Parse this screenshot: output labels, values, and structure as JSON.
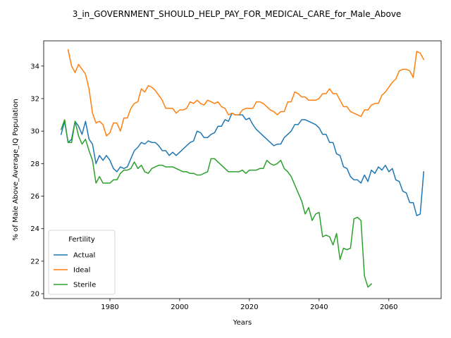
{
  "chart_data": {
    "type": "line",
    "title": "3_in_GOVERNMENT_SHOULD_HELP_PAY_FOR_MEDICAL_CARE_for_Male_Above",
    "xlabel": "Years",
    "ylabel": "% of Male Above_Average_IQ Population",
    "xlim": [
      1961,
      2075
    ],
    "ylim": [
      19.7,
      35.55
    ],
    "x_ticks": [
      1980,
      2000,
      2020,
      2040,
      2060
    ],
    "y_ticks": [
      20,
      22,
      24,
      26,
      28,
      30,
      32,
      34
    ],
    "grid": false,
    "legend": {
      "title": "Fertility",
      "placement": "lower-left"
    },
    "series": [
      {
        "name": "Actual",
        "color": "#1f77b4",
        "points": [
          [
            1966,
            29.8
          ],
          [
            1967,
            30.6
          ],
          [
            1968,
            29.3
          ],
          [
            1969,
            29.5
          ],
          [
            1970,
            30.6
          ],
          [
            1971,
            30.3
          ],
          [
            1972,
            29.8
          ],
          [
            1973,
            30.6
          ],
          [
            1974,
            29.5
          ],
          [
            1975,
            29.2
          ],
          [
            1976,
            28.0
          ],
          [
            1977,
            28.5
          ],
          [
            1978,
            28.2
          ],
          [
            1979,
            28.5
          ],
          [
            1980,
            28.2
          ],
          [
            1981,
            27.7
          ],
          [
            1982,
            27.5
          ],
          [
            1983,
            27.8
          ],
          [
            1984,
            27.7
          ],
          [
            1985,
            27.8
          ],
          [
            1986,
            28.3
          ],
          [
            1987,
            28.8
          ],
          [
            1988,
            29.0
          ],
          [
            1989,
            29.3
          ],
          [
            1990,
            29.2
          ],
          [
            1991,
            29.4
          ],
          [
            1992,
            29.3
          ],
          [
            1993,
            29.3
          ],
          [
            1994,
            29.1
          ],
          [
            1995,
            28.8
          ],
          [
            1996,
            28.8
          ],
          [
            1997,
            28.5
          ],
          [
            1998,
            28.7
          ],
          [
            1999,
            28.5
          ],
          [
            2000,
            28.7
          ],
          [
            2001,
            28.9
          ],
          [
            2002,
            29.1
          ],
          [
            2003,
            29.3
          ],
          [
            2004,
            29.4
          ],
          [
            2005,
            30.0
          ],
          [
            2006,
            29.9
          ],
          [
            2007,
            29.6
          ],
          [
            2008,
            29.6
          ],
          [
            2009,
            29.8
          ],
          [
            2010,
            29.9
          ],
          [
            2011,
            30.3
          ],
          [
            2012,
            30.3
          ],
          [
            2013,
            30.7
          ],
          [
            2014,
            30.6
          ],
          [
            2015,
            31.1
          ],
          [
            2016,
            31.0
          ],
          [
            2017,
            31.0
          ],
          [
            2018,
            31.0
          ],
          [
            2019,
            30.7
          ],
          [
            2020,
            30.8
          ],
          [
            2021,
            30.4
          ],
          [
            2022,
            30.1
          ],
          [
            2023,
            29.9
          ],
          [
            2024,
            29.7
          ],
          [
            2025,
            29.5
          ],
          [
            2026,
            29.3
          ],
          [
            2027,
            29.1
          ],
          [
            2028,
            29.2
          ],
          [
            2029,
            29.2
          ],
          [
            2030,
            29.6
          ],
          [
            2031,
            29.8
          ],
          [
            2032,
            30.0
          ],
          [
            2033,
            30.4
          ],
          [
            2034,
            30.4
          ],
          [
            2035,
            30.7
          ],
          [
            2036,
            30.7
          ],
          [
            2037,
            30.6
          ],
          [
            2038,
            30.5
          ],
          [
            2039,
            30.4
          ],
          [
            2040,
            30.2
          ],
          [
            2041,
            29.8
          ],
          [
            2042,
            29.8
          ],
          [
            2043,
            29.3
          ],
          [
            2044,
            29.3
          ],
          [
            2045,
            28.6
          ],
          [
            2046,
            28.5
          ],
          [
            2047,
            27.8
          ],
          [
            2048,
            27.7
          ],
          [
            2049,
            27.2
          ],
          [
            2050,
            27.0
          ],
          [
            2051,
            27.0
          ],
          [
            2052,
            26.8
          ],
          [
            2053,
            27.3
          ],
          [
            2054,
            26.9
          ],
          [
            2055,
            27.6
          ],
          [
            2056,
            27.4
          ],
          [
            2057,
            27.8
          ],
          [
            2058,
            27.6
          ],
          [
            2059,
            27.9
          ],
          [
            2060,
            27.5
          ],
          [
            2061,
            27.7
          ],
          [
            2062,
            27.0
          ],
          [
            2063,
            26.9
          ],
          [
            2064,
            26.3
          ],
          [
            2065,
            26.2
          ],
          [
            2066,
            25.6
          ],
          [
            2067,
            25.6
          ],
          [
            2068,
            24.8
          ],
          [
            2069,
            24.9
          ],
          [
            2070,
            27.5
          ]
        ]
      },
      {
        "name": "Ideal",
        "color": "#ff7f0e",
        "points": [
          [
            1968,
            35.0
          ],
          [
            1969,
            34.0
          ],
          [
            1970,
            33.6
          ],
          [
            1971,
            34.1
          ],
          [
            1972,
            33.8
          ],
          [
            1973,
            33.5
          ],
          [
            1974,
            32.6
          ],
          [
            1975,
            31.1
          ],
          [
            1976,
            30.5
          ],
          [
            1977,
            30.6
          ],
          [
            1978,
            30.4
          ],
          [
            1979,
            29.7
          ],
          [
            1980,
            29.9
          ],
          [
            1981,
            30.5
          ],
          [
            1982,
            30.5
          ],
          [
            1983,
            30.0
          ],
          [
            1984,
            30.8
          ],
          [
            1985,
            30.8
          ],
          [
            1986,
            31.4
          ],
          [
            1987,
            31.7
          ],
          [
            1988,
            31.8
          ],
          [
            1989,
            32.6
          ],
          [
            1990,
            32.4
          ],
          [
            1991,
            32.8
          ],
          [
            1992,
            32.7
          ],
          [
            1993,
            32.5
          ],
          [
            1994,
            32.2
          ],
          [
            1995,
            31.9
          ],
          [
            1996,
            31.4
          ],
          [
            1997,
            31.4
          ],
          [
            1998,
            31.4
          ],
          [
            1999,
            31.1
          ],
          [
            2000,
            31.3
          ],
          [
            2001,
            31.3
          ],
          [
            2002,
            31.4
          ],
          [
            2003,
            31.8
          ],
          [
            2004,
            31.7
          ],
          [
            2005,
            31.9
          ],
          [
            2006,
            31.7
          ],
          [
            2007,
            31.6
          ],
          [
            2008,
            31.9
          ],
          [
            2009,
            31.8
          ],
          [
            2010,
            31.7
          ],
          [
            2011,
            31.8
          ],
          [
            2012,
            31.5
          ],
          [
            2013,
            31.4
          ],
          [
            2014,
            31.0
          ],
          [
            2015,
            31.1
          ],
          [
            2016,
            31.0
          ],
          [
            2017,
            31.0
          ],
          [
            2018,
            31.3
          ],
          [
            2019,
            31.4
          ],
          [
            2020,
            31.4
          ],
          [
            2021,
            31.4
          ],
          [
            2022,
            31.8
          ],
          [
            2023,
            31.8
          ],
          [
            2024,
            31.7
          ],
          [
            2025,
            31.5
          ],
          [
            2026,
            31.3
          ],
          [
            2027,
            31.2
          ],
          [
            2028,
            31.0
          ],
          [
            2029,
            31.2
          ],
          [
            2030,
            31.2
          ],
          [
            2031,
            31.8
          ],
          [
            2032,
            31.8
          ],
          [
            2033,
            32.4
          ],
          [
            2034,
            32.3
          ],
          [
            2035,
            32.1
          ],
          [
            2036,
            32.1
          ],
          [
            2037,
            31.9
          ],
          [
            2038,
            31.9
          ],
          [
            2039,
            31.9
          ],
          [
            2040,
            32.0
          ],
          [
            2041,
            32.3
          ],
          [
            2042,
            32.3
          ],
          [
            2043,
            32.6
          ],
          [
            2044,
            32.3
          ],
          [
            2045,
            32.3
          ],
          [
            2046,
            31.9
          ],
          [
            2047,
            31.5
          ],
          [
            2048,
            31.5
          ],
          [
            2049,
            31.2
          ],
          [
            2050,
            31.1
          ],
          [
            2051,
            31.0
          ],
          [
            2052,
            30.9
          ],
          [
            2053,
            31.3
          ],
          [
            2054,
            31.3
          ],
          [
            2055,
            31.6
          ],
          [
            2056,
            31.7
          ],
          [
            2057,
            31.7
          ],
          [
            2058,
            32.2
          ],
          [
            2059,
            32.4
          ],
          [
            2060,
            32.7
          ],
          [
            2061,
            33.0
          ],
          [
            2062,
            33.2
          ],
          [
            2063,
            33.7
          ],
          [
            2064,
            33.8
          ],
          [
            2065,
            33.8
          ],
          [
            2066,
            33.7
          ],
          [
            2067,
            33.3
          ],
          [
            2068,
            34.9
          ],
          [
            2069,
            34.8
          ],
          [
            2070,
            34.4
          ]
        ]
      },
      {
        "name": "Sterile",
        "color": "#2ca02c",
        "points": [
          [
            1966,
            30.1
          ],
          [
            1967,
            30.7
          ],
          [
            1968,
            29.3
          ],
          [
            1969,
            29.3
          ],
          [
            1970,
            30.6
          ],
          [
            1971,
            29.7
          ],
          [
            1972,
            29.2
          ],
          [
            1973,
            29.5
          ],
          [
            1974,
            28.8
          ],
          [
            1975,
            28.2
          ],
          [
            1976,
            26.8
          ],
          [
            1977,
            27.2
          ],
          [
            1978,
            26.8
          ],
          [
            1979,
            26.8
          ],
          [
            1980,
            26.8
          ],
          [
            1981,
            27.0
          ],
          [
            1982,
            27.0
          ],
          [
            1983,
            27.4
          ],
          [
            1984,
            27.6
          ],
          [
            1985,
            27.6
          ],
          [
            1986,
            27.7
          ],
          [
            1987,
            28.1
          ],
          [
            1988,
            27.7
          ],
          [
            1989,
            27.9
          ],
          [
            1990,
            27.5
          ],
          [
            1991,
            27.4
          ],
          [
            1992,
            27.7
          ],
          [
            1993,
            27.8
          ],
          [
            1994,
            27.9
          ],
          [
            1995,
            27.9
          ],
          [
            1996,
            27.8
          ],
          [
            1997,
            27.8
          ],
          [
            1998,
            27.8
          ],
          [
            1999,
            27.7
          ],
          [
            2000,
            27.6
          ],
          [
            2001,
            27.5
          ],
          [
            2002,
            27.5
          ],
          [
            2003,
            27.4
          ],
          [
            2004,
            27.4
          ],
          [
            2005,
            27.3
          ],
          [
            2006,
            27.3
          ],
          [
            2007,
            27.4
          ],
          [
            2008,
            27.5
          ],
          [
            2009,
            28.3
          ],
          [
            2010,
            28.3
          ],
          [
            2011,
            28.1
          ],
          [
            2012,
            27.9
          ],
          [
            2013,
            27.7
          ],
          [
            2014,
            27.5
          ],
          [
            2015,
            27.5
          ],
          [
            2016,
            27.5
          ],
          [
            2017,
            27.5
          ],
          [
            2018,
            27.6
          ],
          [
            2019,
            27.4
          ],
          [
            2020,
            27.6
          ],
          [
            2021,
            27.6
          ],
          [
            2022,
            27.6
          ],
          [
            2023,
            27.7
          ],
          [
            2024,
            27.7
          ],
          [
            2025,
            28.2
          ],
          [
            2026,
            28.0
          ],
          [
            2027,
            27.9
          ],
          [
            2028,
            28.0
          ],
          [
            2029,
            28.2
          ],
          [
            2030,
            27.7
          ],
          [
            2031,
            27.5
          ],
          [
            2032,
            27.2
          ],
          [
            2033,
            26.7
          ],
          [
            2034,
            26.2
          ],
          [
            2035,
            25.7
          ],
          [
            2036,
            24.9
          ],
          [
            2037,
            25.3
          ],
          [
            2038,
            24.5
          ],
          [
            2039,
            24.9
          ],
          [
            2040,
            25.0
          ],
          [
            2041,
            23.5
          ],
          [
            2042,
            23.6
          ],
          [
            2043,
            23.5
          ],
          [
            2044,
            23.0
          ],
          [
            2045,
            23.7
          ],
          [
            2046,
            22.1
          ],
          [
            2047,
            22.8
          ],
          [
            2048,
            22.7
          ],
          [
            2049,
            22.8
          ],
          [
            2050,
            24.6
          ],
          [
            2051,
            24.7
          ],
          [
            2052,
            24.5
          ],
          [
            2053,
            21.1
          ],
          [
            2054,
            20.4
          ],
          [
            2055,
            20.6
          ]
        ]
      }
    ]
  }
}
